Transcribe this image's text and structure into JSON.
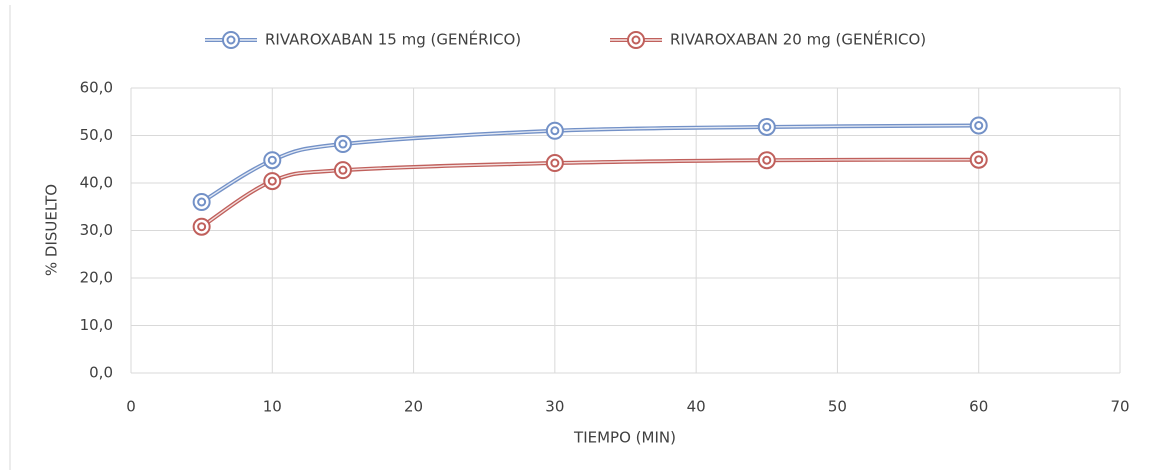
{
  "chart_data": {
    "type": "line",
    "x_label": "TIEMPO (MIN)",
    "y_label": "% DISUELTO",
    "x": [
      5,
      10,
      15,
      30,
      45,
      60
    ],
    "series": [
      {
        "name": "RIVAROXABAN 15 mg (GENÉRICO)",
        "color": "#7391c7",
        "values": [
          36.0,
          44.8,
          48.2,
          51.0,
          51.8,
          52.1
        ]
      },
      {
        "name": "RIVAROXABAN 20 mg (GENÉRICO)",
        "color": "#c0605c",
        "values": [
          30.8,
          40.4,
          42.7,
          44.2,
          44.8,
          44.9
        ]
      }
    ],
    "xlim": [
      0,
      70
    ],
    "xticks": [
      0,
      10,
      20,
      30,
      40,
      50,
      60,
      70
    ],
    "ylim": [
      0,
      60
    ],
    "yticks": [
      {
        "value": 0,
        "label": "0,0"
      },
      {
        "value": 10,
        "label": "10,0"
      },
      {
        "value": 20,
        "label": "20,0"
      },
      {
        "value": 30,
        "label": "30,0"
      },
      {
        "value": 40,
        "label": "40,0"
      },
      {
        "value": 50,
        "label": "50,0"
      },
      {
        "value": 60,
        "label": "60,0"
      }
    ],
    "grid": true,
    "smooth": true,
    "legend": "top"
  }
}
